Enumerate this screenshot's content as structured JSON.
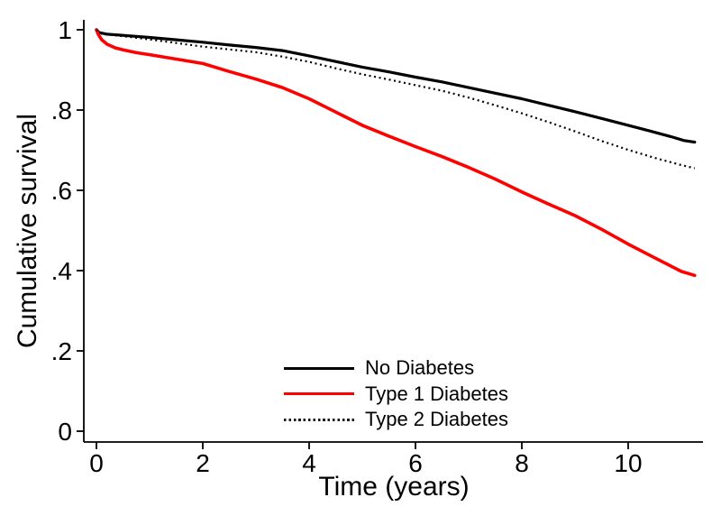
{
  "chart_data": {
    "type": "line",
    "title": "",
    "xlabel": "Time (years)",
    "ylabel": "Cumulative survival",
    "xlim": [
      0,
      11.4
    ],
    "ylim": [
      0,
      1.0
    ],
    "grid": false,
    "legend_position": "inside-bottom-center",
    "x_ticks": [
      {
        "v": 0,
        "label": "0"
      },
      {
        "v": 2,
        "label": "2"
      },
      {
        "v": 4,
        "label": "4"
      },
      {
        "v": 6,
        "label": "6"
      },
      {
        "v": 8,
        "label": "8"
      },
      {
        "v": 10,
        "label": "10"
      }
    ],
    "y_ticks": [
      {
        "v": 0,
        "label": "0"
      },
      {
        "v": 0.2,
        "label": ".2"
      },
      {
        "v": 0.4,
        "label": ".4"
      },
      {
        "v": 0.6,
        "label": ".6"
      },
      {
        "v": 0.8,
        "label": ".8"
      },
      {
        "v": 1,
        "label": "1"
      }
    ],
    "series": [
      {
        "name": "No Diabetes",
        "color": "#000000",
        "style": "solid",
        "width": 3.2,
        "points": [
          [
            0,
            1.0
          ],
          [
            0.05,
            0.993
          ],
          [
            0.2,
            0.989
          ],
          [
            0.5,
            0.986
          ],
          [
            1,
            0.981
          ],
          [
            1.5,
            0.975
          ],
          [
            2,
            0.969
          ],
          [
            2.5,
            0.962
          ],
          [
            3,
            0.956
          ],
          [
            3.5,
            0.948
          ],
          [
            4,
            0.935
          ],
          [
            4.5,
            0.921
          ],
          [
            5,
            0.907
          ],
          [
            5.5,
            0.895
          ],
          [
            6,
            0.882
          ],
          [
            6.5,
            0.87
          ],
          [
            7,
            0.856
          ],
          [
            7.5,
            0.842
          ],
          [
            8,
            0.828
          ],
          [
            8.5,
            0.812
          ],
          [
            9,
            0.796
          ],
          [
            9.5,
            0.779
          ],
          [
            10,
            0.762
          ],
          [
            10.4,
            0.748
          ],
          [
            10.8,
            0.734
          ],
          [
            11.05,
            0.724
          ],
          [
            11.25,
            0.72
          ]
        ]
      },
      {
        "name": "Type 1 Diabetes",
        "color": "#ff0000",
        "style": "solid",
        "width": 3.6,
        "points": [
          [
            0,
            1.0
          ],
          [
            0.04,
            0.987
          ],
          [
            0.1,
            0.975
          ],
          [
            0.2,
            0.964
          ],
          [
            0.35,
            0.955
          ],
          [
            0.5,
            0.95
          ],
          [
            0.75,
            0.943
          ],
          [
            1,
            0.938
          ],
          [
            1.5,
            0.927
          ],
          [
            2,
            0.916
          ],
          [
            2.5,
            0.896
          ],
          [
            3,
            0.877
          ],
          [
            3.5,
            0.856
          ],
          [
            4,
            0.828
          ],
          [
            4.5,
            0.795
          ],
          [
            5,
            0.762
          ],
          [
            5.5,
            0.735
          ],
          [
            6,
            0.709
          ],
          [
            6.5,
            0.684
          ],
          [
            7,
            0.657
          ],
          [
            7.5,
            0.628
          ],
          [
            8,
            0.596
          ],
          [
            8.5,
            0.566
          ],
          [
            9,
            0.537
          ],
          [
            9.5,
            0.503
          ],
          [
            10,
            0.466
          ],
          [
            10.5,
            0.432
          ],
          [
            11,
            0.398
          ],
          [
            11.25,
            0.388
          ]
        ]
      },
      {
        "name": "Type 2 Diabetes",
        "color": "#000000",
        "style": "dotted",
        "width": 2.2,
        "points": [
          [
            0,
            1.0
          ],
          [
            0.1,
            0.99
          ],
          [
            0.5,
            0.984
          ],
          [
            1,
            0.976
          ],
          [
            1.5,
            0.967
          ],
          [
            2,
            0.958
          ],
          [
            2.5,
            0.951
          ],
          [
            3,
            0.944
          ],
          [
            3.5,
            0.933
          ],
          [
            4,
            0.92
          ],
          [
            4.5,
            0.904
          ],
          [
            5,
            0.889
          ],
          [
            5.5,
            0.876
          ],
          [
            6,
            0.862
          ],
          [
            6.5,
            0.848
          ],
          [
            7,
            0.831
          ],
          [
            7.5,
            0.812
          ],
          [
            8,
            0.792
          ],
          [
            8.5,
            0.77
          ],
          [
            9,
            0.747
          ],
          [
            9.5,
            0.723
          ],
          [
            10,
            0.701
          ],
          [
            10.5,
            0.681
          ],
          [
            11,
            0.663
          ],
          [
            11.25,
            0.655
          ]
        ]
      }
    ]
  }
}
